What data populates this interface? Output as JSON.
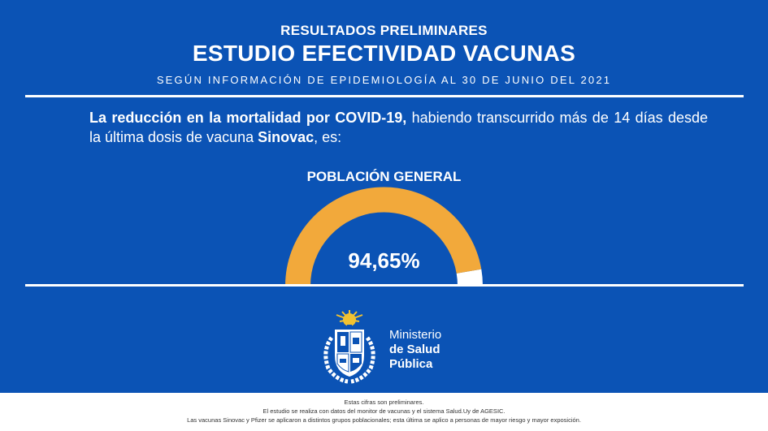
{
  "header": {
    "line1": "RESULTADOS PRELIMINARES",
    "line2": "ESTUDIO EFECTIVIDAD VACUNAS",
    "line3": "SEGÚN INFORMACIÓN DE EPIDEMIOLOGÍA AL 30 DE JUNIO DEL 2021"
  },
  "paragraph": {
    "bold1": "La reducción en la mortalidad por COVID-19,",
    "text1": " habiendo transcurrido más de 14 días desde la última dosis de vacuna ",
    "bold2": "Sinovac",
    "text2": ", es:"
  },
  "gauge": {
    "title": "POBLACIÓN GENERAL",
    "value_label": "94,65%",
    "value": 94.65,
    "fill_color": "#f2a93b",
    "rest_color": "#ffffff"
  },
  "ministry": {
    "line1": "Ministerio",
    "line2": "de Salud",
    "line3": "Pública"
  },
  "footer": {
    "line1": "Estas cifras son preliminares.",
    "line2": "El estudio se realiza con datos del monitor de vacunas y el sistema Salud.Uy de AGESIC.",
    "line3": "Las vacunas Sinovac y Pfizer se aplicaron a distintos grupos poblacionales; esta última se aplico a personas de mayor riesgo y mayor exposición."
  },
  "colors": {
    "background": "#0b53b5",
    "accent": "#f2a93b"
  }
}
